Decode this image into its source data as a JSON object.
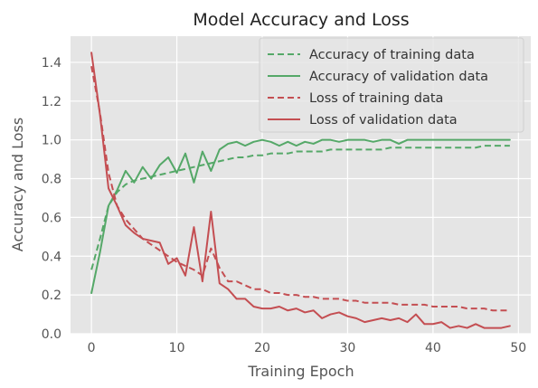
{
  "chart_data": {
    "type": "line",
    "title": "Model Accuracy and Loss",
    "xlabel": "Training Epoch",
    "ylabel": "Accuracy and Loss",
    "xlim": [
      -2.45,
      51.45
    ],
    "ylim": [
      0.0,
      1.535
    ],
    "xticks": [
      0,
      10,
      20,
      30,
      40,
      50
    ],
    "yticks": [
      0.0,
      0.2,
      0.4,
      0.6,
      0.8,
      1.0,
      1.2,
      1.4
    ],
    "grid": true,
    "legend_position": "top-right",
    "series": [
      {
        "name": "Accuracy of training data",
        "color": "#55a868",
        "dash": "dashed",
        "x": [
          0,
          1,
          2,
          3,
          4,
          5,
          6,
          7,
          8,
          9,
          10,
          11,
          12,
          13,
          14,
          15,
          16,
          17,
          18,
          19,
          20,
          21,
          22,
          23,
          24,
          25,
          26,
          27,
          28,
          29,
          30,
          31,
          32,
          33,
          34,
          35,
          36,
          37,
          38,
          39,
          40,
          41,
          42,
          43,
          44,
          45,
          46,
          47,
          48,
          49
        ],
        "values": [
          0.33,
          0.49,
          0.66,
          0.73,
          0.77,
          0.79,
          0.8,
          0.81,
          0.82,
          0.83,
          0.84,
          0.85,
          0.86,
          0.87,
          0.88,
          0.89,
          0.9,
          0.91,
          0.91,
          0.92,
          0.92,
          0.93,
          0.93,
          0.93,
          0.94,
          0.94,
          0.94,
          0.94,
          0.95,
          0.95,
          0.95,
          0.95,
          0.95,
          0.95,
          0.95,
          0.96,
          0.96,
          0.96,
          0.96,
          0.96,
          0.96,
          0.96,
          0.96,
          0.96,
          0.96,
          0.96,
          0.97,
          0.97,
          0.97,
          0.97
        ]
      },
      {
        "name": "Accuracy of validation data",
        "color": "#55a868",
        "dash": "solid",
        "x": [
          0,
          1,
          2,
          3,
          4,
          5,
          6,
          7,
          8,
          9,
          10,
          11,
          12,
          13,
          14,
          15,
          16,
          17,
          18,
          19,
          20,
          21,
          22,
          23,
          24,
          25,
          26,
          27,
          28,
          29,
          30,
          31,
          32,
          33,
          34,
          35,
          36,
          37,
          38,
          39,
          40,
          41,
          42,
          43,
          44,
          45,
          46,
          47,
          48,
          49
        ],
        "values": [
          0.21,
          0.42,
          0.66,
          0.74,
          0.84,
          0.78,
          0.86,
          0.8,
          0.87,
          0.91,
          0.83,
          0.93,
          0.78,
          0.94,
          0.84,
          0.95,
          0.98,
          0.99,
          0.97,
          0.99,
          1.0,
          0.99,
          0.97,
          0.99,
          0.97,
          0.99,
          0.98,
          1.0,
          1.0,
          0.99,
          1.0,
          1.0,
          1.0,
          0.99,
          1.0,
          1.0,
          0.98,
          1.0,
          1.0,
          1.0,
          1.0,
          1.0,
          1.0,
          1.0,
          1.0,
          1.0,
          1.0,
          1.0,
          1.0,
          1.0
        ]
      },
      {
        "name": "Loss of training data",
        "color": "#c44e52",
        "dash": "dashed",
        "x": [
          0,
          1,
          2,
          3,
          4,
          5,
          6,
          7,
          8,
          9,
          10,
          11,
          12,
          13,
          14,
          15,
          16,
          17,
          18,
          19,
          20,
          21,
          22,
          23,
          24,
          25,
          26,
          27,
          28,
          29,
          30,
          31,
          32,
          33,
          34,
          35,
          36,
          37,
          38,
          39,
          40,
          41,
          42,
          43,
          44,
          45,
          46,
          47,
          48,
          49
        ],
        "values": [
          1.38,
          1.14,
          0.83,
          0.66,
          0.59,
          0.54,
          0.49,
          0.46,
          0.43,
          0.4,
          0.37,
          0.35,
          0.33,
          0.3,
          0.44,
          0.34,
          0.27,
          0.27,
          0.25,
          0.23,
          0.23,
          0.21,
          0.21,
          0.2,
          0.2,
          0.19,
          0.19,
          0.18,
          0.18,
          0.18,
          0.17,
          0.17,
          0.16,
          0.16,
          0.16,
          0.16,
          0.15,
          0.15,
          0.15,
          0.15,
          0.14,
          0.14,
          0.14,
          0.14,
          0.13,
          0.13,
          0.13,
          0.12,
          0.12,
          0.12
        ]
      },
      {
        "name": "Loss of validation data",
        "color": "#c44e52",
        "dash": "solid",
        "x": [
          0,
          1,
          2,
          3,
          4,
          5,
          6,
          7,
          8,
          9,
          10,
          11,
          12,
          13,
          14,
          15,
          16,
          17,
          18,
          19,
          20,
          21,
          22,
          23,
          24,
          25,
          26,
          27,
          28,
          29,
          30,
          31,
          32,
          33,
          34,
          35,
          36,
          37,
          38,
          39,
          40,
          41,
          42,
          43,
          44,
          45,
          46,
          47,
          48,
          49
        ],
        "values": [
          1.45,
          1.13,
          0.75,
          0.66,
          0.56,
          0.52,
          0.49,
          0.48,
          0.47,
          0.36,
          0.39,
          0.3,
          0.55,
          0.27,
          0.63,
          0.26,
          0.23,
          0.18,
          0.18,
          0.14,
          0.13,
          0.13,
          0.14,
          0.12,
          0.13,
          0.11,
          0.12,
          0.08,
          0.1,
          0.11,
          0.09,
          0.08,
          0.06,
          0.07,
          0.08,
          0.07,
          0.08,
          0.06,
          0.1,
          0.05,
          0.05,
          0.06,
          0.03,
          0.04,
          0.03,
          0.05,
          0.03,
          0.03,
          0.03,
          0.04
        ]
      }
    ]
  }
}
